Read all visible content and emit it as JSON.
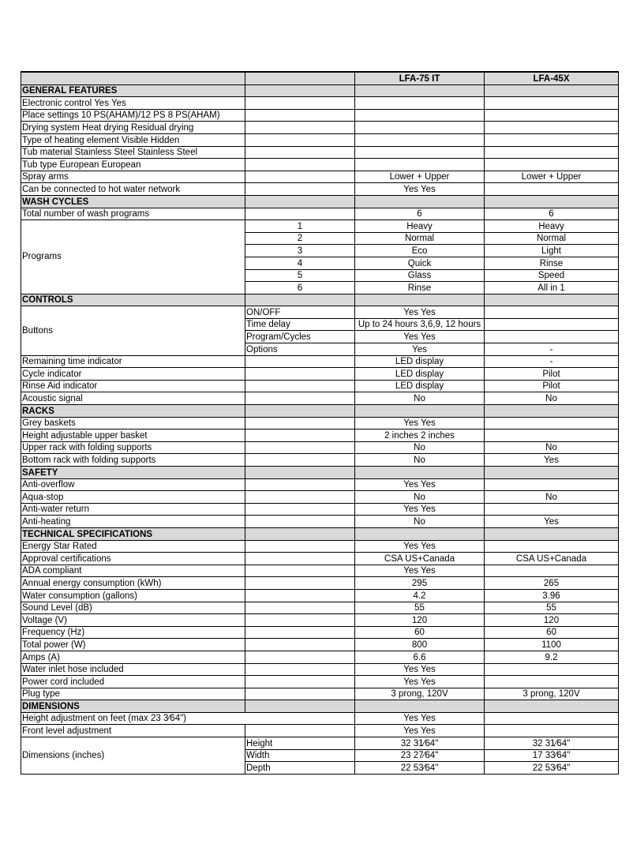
{
  "header": {
    "col3": "LFA-75 IT",
    "col4": "LFA-45X"
  },
  "rows": [
    {
      "type": "section",
      "label": "GENERAL FEATURES"
    },
    {
      "label": "Electronic control  Yes  Yes"
    },
    {
      "label": "Place settings  10 PS(AHAM)/12 PS  8 PS(AHAM)"
    },
    {
      "label": "Drying system  Heat drying  Residual drying"
    },
    {
      "label": "Type of heating element  Visible  Hidden"
    },
    {
      "label": "Tub material  Stainless Steel  Stainless Steel"
    },
    {
      "label": "Tub type  European  European"
    },
    {
      "label": "Spray arms",
      "a": "Lower + Upper",
      "b": "Lower + Upper"
    },
    {
      "label": "Can be connected to hot water network",
      "a": "Yes  Yes"
    },
    {
      "type": "section",
      "label": "WASH CYCLES"
    },
    {
      "label": "Total number of wash programs",
      "a": "6",
      "b": "6"
    },
    {
      "type": "group",
      "label": "Programs",
      "subcenter": true,
      "items": [
        {
          "sub": "1",
          "a": "Heavy",
          "b": "Heavy"
        },
        {
          "sub": "2",
          "a": "Normal",
          "b": "Normal"
        },
        {
          "sub": "3",
          "a": "Eco",
          "b": "Light"
        },
        {
          "sub": "4",
          "a": "Quick",
          "b": "Rinse"
        },
        {
          "sub": "5",
          "a": "Glass",
          "b": "Speed"
        },
        {
          "sub": "6",
          "a": "Rinse",
          "b": "All in 1"
        }
      ]
    },
    {
      "type": "section",
      "label": "CONTROLS"
    },
    {
      "type": "group",
      "label": "Buttons",
      "items": [
        {
          "sub": "ON/OFF",
          "a": "Yes  Yes"
        },
        {
          "sub": "Time delay",
          "a": "Up to 24 hours  3,6,9, 12 hours"
        },
        {
          "sub": "Program/Cycles",
          "a": "Yes  Yes"
        },
        {
          "sub": "Options",
          "a": "Yes",
          "b": "-"
        }
      ]
    },
    {
      "label": "Remaining time indicator",
      "a": "LED display",
      "b": "-"
    },
    {
      "label": "Cycle indicator",
      "a": "LED display",
      "b": "Pilot"
    },
    {
      "label": "Rinse Aid indicator",
      "a": "LED display",
      "b": "Pilot"
    },
    {
      "label": "Acoustic signal",
      "a": "No",
      "b": "No"
    },
    {
      "type": "section",
      "label": "RACKS"
    },
    {
      "label": "Grey baskets",
      "a": "Yes  Yes"
    },
    {
      "label": "Height adjustable upper basket",
      "a": "2 inches  2 inches"
    },
    {
      "label": "Upper rack with folding supports",
      "a": "No",
      "b": "No"
    },
    {
      "label": "Bottom rack with folding supports",
      "a": "No",
      "b": "Yes"
    },
    {
      "type": "section",
      "label": "SAFETY"
    },
    {
      "label": "Anti-overflow",
      "a": "Yes  Yes"
    },
    {
      "label": "Aqua-stop",
      "a": "No",
      "b": "No"
    },
    {
      "label": "Anti-water return",
      "a": "Yes  Yes"
    },
    {
      "label": "Anti-heating",
      "a": "No",
      "b": "Yes"
    },
    {
      "type": "section",
      "label": "TECHNICAL SPECIFICATIONS"
    },
    {
      "label": "Energy Star Rated",
      "a": "Yes  Yes"
    },
    {
      "label": "Approval  certifications",
      "a": "CSA US+Canada",
      "b": "CSA US+Canada"
    },
    {
      "label": "ADA compliant",
      "a": "Yes  Yes"
    },
    {
      "label": "Annual energy consumption (kWh)",
      "a": "295",
      "b": "265"
    },
    {
      "label": "Water consumption (gallons)",
      "a": "4.2",
      "b": "3.96"
    },
    {
      "label": "Sound Level (dB)",
      "a": "55",
      "b": "55"
    },
    {
      "label": "Voltage (V)",
      "a": "120",
      "b": "120"
    },
    {
      "label": "Frequency (Hz)",
      "a": "60",
      "b": "60"
    },
    {
      "label": "Total power (W)",
      "a": "800",
      "b": "1100"
    },
    {
      "label": "Amps  (A)",
      "a": "6.6",
      "b": "9.2"
    },
    {
      "label": "Water inlet hose included",
      "a": "Yes  Yes"
    },
    {
      "label": "Power cord included",
      "a": "Yes  Yes"
    },
    {
      "label": "Plug type",
      "a": "3 prong, 120V",
      "b": "3 prong, 120V"
    },
    {
      "type": "section",
      "label": "DIMENSIONS"
    },
    {
      "label": "Height adjustment on feet (max 23 3⁄64\")",
      "span": true,
      "a": "Yes  Yes"
    },
    {
      "label": "Front level adjustment",
      "a": "Yes  Yes"
    },
    {
      "type": "group",
      "label": "Dimensions (inches)",
      "items": [
        {
          "sub": "Height",
          "a": "32 31⁄64\"",
          "b": "32 31⁄64\""
        },
        {
          "sub": "Width",
          "a": "23 27⁄64\"",
          "b": "17 33⁄64\""
        },
        {
          "sub": "Depth",
          "a": "22 53⁄64\"",
          "b": "22 53⁄64\""
        }
      ]
    }
  ]
}
